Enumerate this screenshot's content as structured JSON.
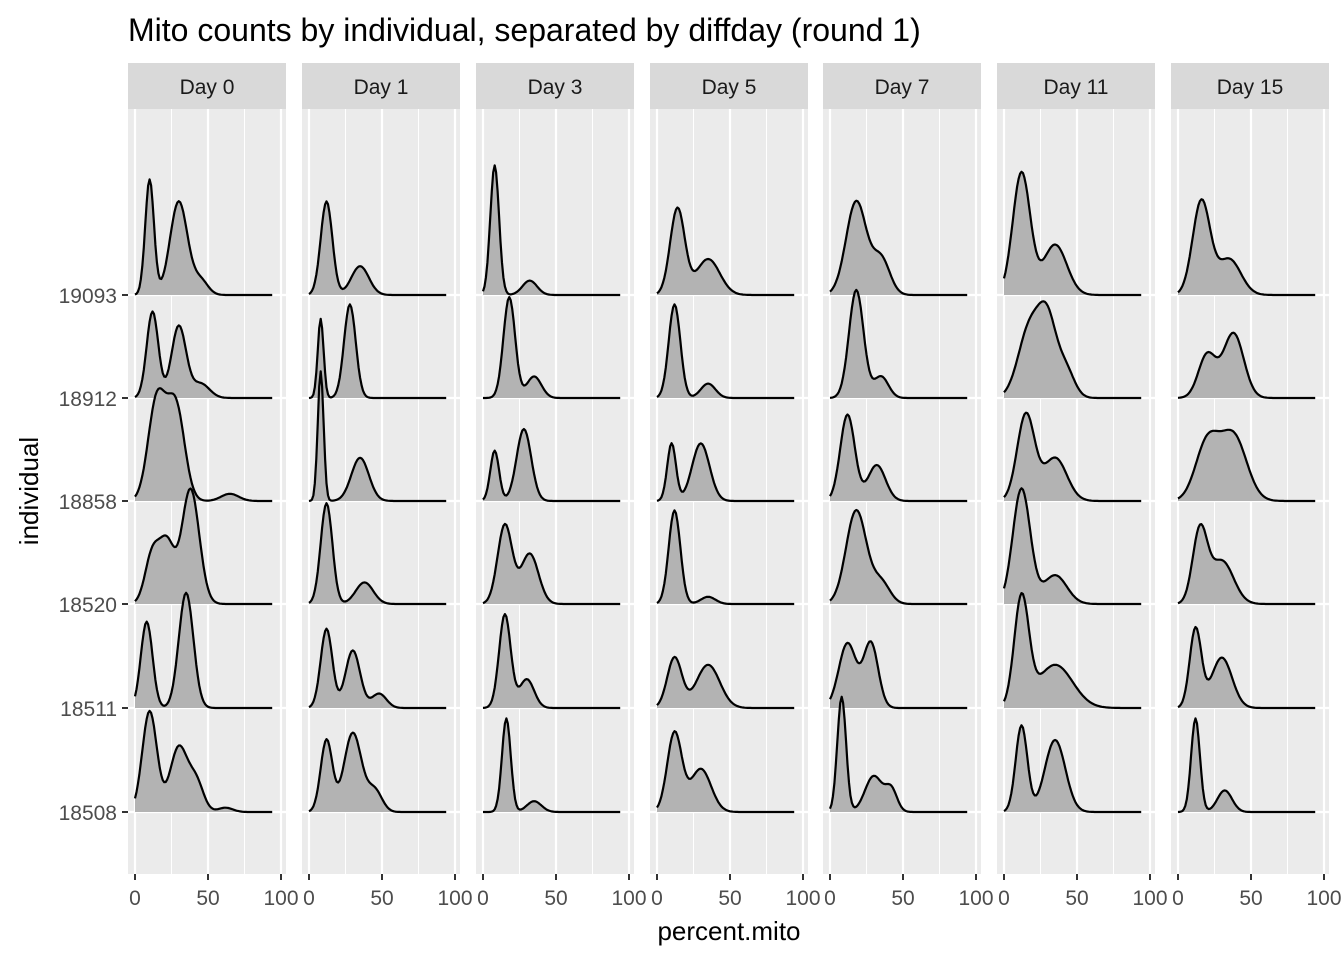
{
  "chart_data": {
    "type": "ridgeline",
    "title": "Mito counts by individual, separated by diffday (round 1)",
    "xlabel": "percent.mito",
    "ylabel": "individual",
    "xlim": [
      0,
      100
    ],
    "x_ticks": [
      0,
      50,
      100
    ],
    "x_tick_labels": [
      "0",
      "50",
      "100"
    ],
    "individuals": [
      "18508",
      "18511",
      "18520",
      "18858",
      "18912",
      "19093"
    ],
    "grid": true,
    "colors": {
      "panel_bg": "#ebebeb",
      "strip_bg": "#d9d9d9",
      "fill": "#b3b3b3",
      "line": "#000000",
      "grid": "#ffffff",
      "text": "#4d4d4d"
    },
    "panels": [
      {
        "label": "Day 0",
        "ridges": [
          {
            "individual": "18508",
            "peaks": [
              [
                10,
                5,
                1.4
              ],
              [
                30,
                6,
                0.9
              ],
              [
                42,
                5,
                0.4
              ],
              [
                62,
                5,
                0.06
              ]
            ]
          },
          {
            "individual": "18511",
            "peaks": [
              [
                8,
                4,
                1.2
              ],
              [
                35,
                5,
                1.6
              ]
            ]
          },
          {
            "individual": "18520",
            "peaks": [
              [
                12,
                5,
                0.7
              ],
              [
                22,
                5,
                0.8
              ],
              [
                38,
                6,
                1.6
              ]
            ]
          },
          {
            "individual": "18858",
            "peaks": [
              [
                15,
                6,
                1.4
              ],
              [
                28,
                6,
                1.3
              ],
              [
                65,
                6,
                0.1
              ]
            ]
          },
          {
            "individual": "18912",
            "peaks": [
              [
                12,
                4,
                1.2
              ],
              [
                30,
                5,
                1.0
              ],
              [
                45,
                6,
                0.2
              ]
            ]
          },
          {
            "individual": "19093",
            "peaks": [
              [
                10,
                3,
                1.6
              ],
              [
                30,
                6,
                1.3
              ],
              [
                45,
                5,
                0.2
              ]
            ]
          }
        ]
      },
      {
        "label": "Day 1",
        "ridges": [
          {
            "individual": "18508",
            "peaks": [
              [
                12,
                4,
                1.0
              ],
              [
                30,
                6,
                1.1
              ],
              [
                45,
                5,
                0.3
              ]
            ]
          },
          {
            "individual": "18511",
            "peaks": [
              [
                12,
                4,
                1.1
              ],
              [
                30,
                5,
                0.8
              ],
              [
                48,
                5,
                0.2
              ]
            ]
          },
          {
            "individual": "18520",
            "peaks": [
              [
                12,
                4,
                1.4
              ],
              [
                38,
                6,
                0.3
              ]
            ]
          },
          {
            "individual": "18858",
            "peaks": [
              [
                8,
                2,
                1.8
              ],
              [
                35,
                6,
                0.6
              ]
            ]
          },
          {
            "individual": "18912",
            "peaks": [
              [
                8,
                2,
                1.1
              ],
              [
                28,
                4,
                1.3
              ]
            ]
          },
          {
            "individual": "19093",
            "peaks": [
              [
                12,
                4,
                1.3
              ],
              [
                35,
                6,
                0.4
              ]
            ]
          }
        ]
      },
      {
        "label": "Day 3",
        "ridges": [
          {
            "individual": "18508",
            "peaks": [
              [
                16,
                3,
                1.3
              ],
              [
                35,
                5,
                0.15
              ]
            ]
          },
          {
            "individual": "18511",
            "peaks": [
              [
                15,
                4,
                1.3
              ],
              [
                30,
                5,
                0.4
              ]
            ]
          },
          {
            "individual": "18520",
            "peaks": [
              [
                15,
                5,
                1.1
              ],
              [
                32,
                6,
                0.7
              ]
            ]
          },
          {
            "individual": "18858",
            "peaks": [
              [
                8,
                3,
                0.7
              ],
              [
                28,
                5,
                1.0
              ]
            ]
          },
          {
            "individual": "18912",
            "peaks": [
              [
                18,
                4,
                1.4
              ],
              [
                35,
                5,
                0.3
              ]
            ]
          },
          {
            "individual": "19093",
            "peaks": [
              [
                8,
                3,
                1.8
              ],
              [
                32,
                5,
                0.2
              ]
            ]
          }
        ]
      },
      {
        "label": "Day 5",
        "ridges": [
          {
            "individual": "18508",
            "peaks": [
              [
                12,
                5,
                1.1
              ],
              [
                30,
                7,
                0.6
              ]
            ]
          },
          {
            "individual": "18511",
            "peaks": [
              [
                12,
                5,
                0.7
              ],
              [
                35,
                8,
                0.6
              ]
            ]
          },
          {
            "individual": "18520",
            "peaks": [
              [
                12,
                4,
                1.3
              ],
              [
                35,
                5,
                0.1
              ]
            ]
          },
          {
            "individual": "18858",
            "peaks": [
              [
                10,
                3,
                0.8
              ],
              [
                30,
                6,
                0.8
              ]
            ]
          },
          {
            "individual": "18912",
            "peaks": [
              [
                12,
                4,
                1.3
              ],
              [
                35,
                5,
                0.2
              ]
            ]
          },
          {
            "individual": "19093",
            "peaks": [
              [
                14,
                5,
                1.2
              ],
              [
                35,
                8,
                0.5
              ]
            ]
          }
        ]
      },
      {
        "label": "Day 7",
        "ridges": [
          {
            "individual": "18508",
            "peaks": [
              [
                8,
                3,
                1.6
              ],
              [
                30,
                6,
                0.5
              ],
              [
                42,
                4,
                0.3
              ]
            ]
          },
          {
            "individual": "18511",
            "peaks": [
              [
                12,
                6,
                0.9
              ],
              [
                28,
                5,
                0.9
              ]
            ]
          },
          {
            "individual": "18520",
            "peaks": [
              [
                18,
                7,
                1.3
              ],
              [
                35,
                6,
                0.3
              ]
            ]
          },
          {
            "individual": "18858",
            "peaks": [
              [
                12,
                5,
                1.2
              ],
              [
                32,
                6,
                0.5
              ]
            ]
          },
          {
            "individual": "18912",
            "peaks": [
              [
                18,
                5,
                1.5
              ],
              [
                35,
                5,
                0.3
              ]
            ]
          },
          {
            "individual": "19093",
            "peaks": [
              [
                18,
                7,
                1.3
              ],
              [
                35,
                6,
                0.5
              ]
            ]
          }
        ]
      },
      {
        "label": "Day 11",
        "ridges": [
          {
            "individual": "18508",
            "peaks": [
              [
                12,
                4,
                1.2
              ],
              [
                35,
                7,
                1.0
              ]
            ]
          },
          {
            "individual": "18511",
            "peaks": [
              [
                12,
                5,
                1.5
              ],
              [
                35,
                12,
                0.6
              ]
            ]
          },
          {
            "individual": "18520",
            "peaks": [
              [
                12,
                6,
                1.6
              ],
              [
                35,
                8,
                0.4
              ]
            ]
          },
          {
            "individual": "18858",
            "peaks": [
              [
                15,
                6,
                1.2
              ],
              [
                35,
                8,
                0.6
              ]
            ]
          },
          {
            "individual": "18912",
            "peaks": [
              [
                18,
                8,
                1.0
              ],
              [
                30,
                6,
                0.9
              ],
              [
                42,
                6,
                0.4
              ]
            ]
          },
          {
            "individual": "19093",
            "peaks": [
              [
                12,
                6,
                1.7
              ],
              [
                35,
                8,
                0.7
              ]
            ]
          }
        ]
      },
      {
        "label": "Day 15",
        "ridges": [
          {
            "individual": "18508",
            "peaks": [
              [
                12,
                3,
                1.3
              ],
              [
                32,
                5,
                0.3
              ]
            ]
          },
          {
            "individual": "18511",
            "peaks": [
              [
                12,
                4,
                1.1
              ],
              [
                30,
                7,
                0.7
              ]
            ]
          },
          {
            "individual": "18520",
            "peaks": [
              [
                15,
                5,
                1.0
              ],
              [
                30,
                8,
                0.6
              ]
            ]
          },
          {
            "individual": "18858",
            "peaks": [
              [
                20,
                8,
                0.8
              ],
              [
                38,
                9,
                0.9
              ]
            ]
          },
          {
            "individual": "18912",
            "peaks": [
              [
                20,
                6,
                0.6
              ],
              [
                38,
                7,
                0.9
              ]
            ]
          },
          {
            "individual": "19093",
            "peaks": [
              [
                16,
                6,
                1.3
              ],
              [
                35,
                8,
                0.5
              ]
            ]
          }
        ]
      }
    ]
  }
}
